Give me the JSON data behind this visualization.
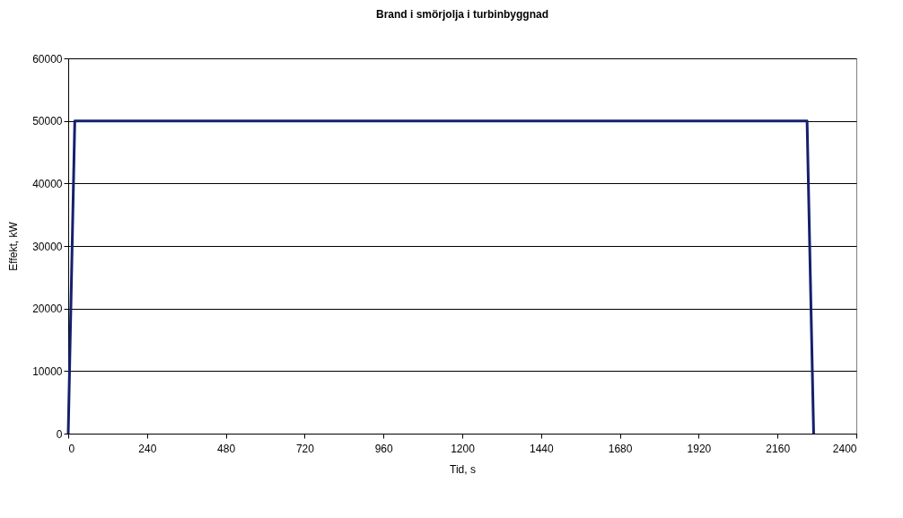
{
  "chart_data": {
    "type": "line",
    "title": "Brand i smörjolja i turbinbyggnad",
    "xlabel": "Tid, s",
    "ylabel": "Effekt, kW",
    "x": [
      0,
      20,
      2250,
      2270
    ],
    "series": [
      {
        "color": "#14206e",
        "values": [
          0,
          50000,
          50000,
          0
        ]
      }
    ],
    "xlim": [
      0,
      2400
    ],
    "xticks": [
      0,
      240,
      480,
      720,
      960,
      1200,
      1440,
      1680,
      1920,
      2160,
      2400
    ],
    "ylim": [
      0,
      60000
    ],
    "yticks": [
      0,
      10000,
      20000,
      30000,
      40000,
      50000,
      60000
    ],
    "grid": "y",
    "marker": "none",
    "line_style": "solid"
  }
}
